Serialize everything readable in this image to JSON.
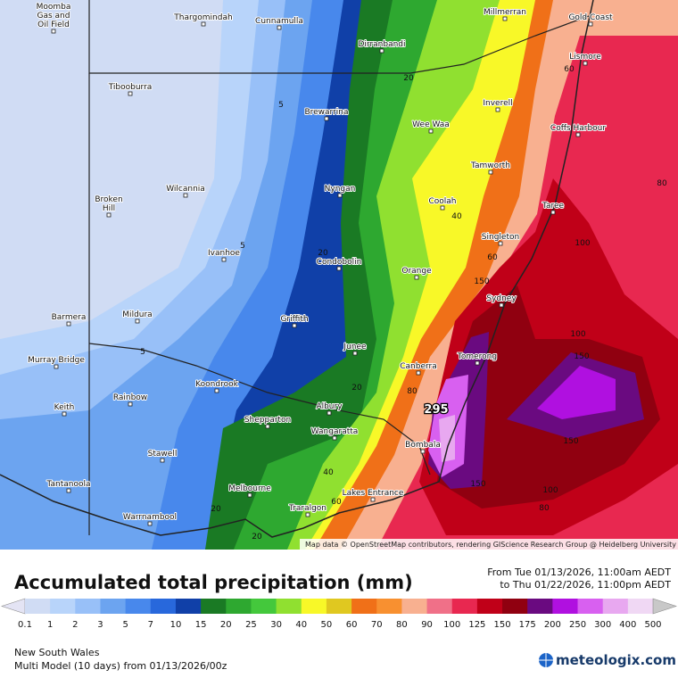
{
  "map": {
    "towns": [
      [
        "Moomba",
        "Gas and",
        "Oil Field"
      ],
      "Thargomindah",
      "Cunnamulla",
      "Millmerran",
      "Gold Coast",
      "Dirranbandi",
      "Lismore",
      "Tibooburra",
      "Brewarrina",
      "Inverell",
      "Wee Waa",
      "Coffs Harbour",
      "Tamworth",
      "Nyngan",
      "Wilcannia",
      [
        "Broken",
        "Hill"
      ],
      "Coolah",
      "Taree",
      "Singleton",
      "Ivanhoe",
      "Condobolin",
      "Orange",
      "Sydney",
      "Barmera",
      "Mildura",
      "Griffith",
      "Junee",
      "Murray Bridge",
      "Canberra",
      "Tomerong",
      "Koondrook",
      "Rainbow",
      "Keith",
      "Albury",
      "Shepparton",
      "Wangaratta",
      "Bombala",
      "Stawell",
      "Tantanoola",
      "Melbourne",
      "Lakes Entrance",
      "Warrnambool",
      "Traralgon"
    ],
    "contour_labels": [
      5,
      5,
      5,
      20,
      20,
      20,
      20,
      20,
      40,
      40,
      60,
      60,
      60,
      80,
      80,
      80,
      100,
      100,
      100,
      150,
      150,
      150,
      150,
      295
    ],
    "attribution": "Map data © OpenStreetMap contributors, rendering GIScience Research Group @ Heidelberg University"
  },
  "header": {
    "title": "Accumulated total precipitation (mm)",
    "period_from": "From Tue 01/13/2026, 11:00am AEDT",
    "period_to": "to Thu 01/22/2026, 11:00pm AEDT"
  },
  "legend": {
    "ticks": [
      0.1,
      1,
      2,
      3,
      5,
      7,
      10,
      15,
      20,
      25,
      30,
      40,
      50,
      60,
      70,
      80,
      90,
      100,
      125,
      150,
      175,
      200,
      250,
      300,
      400,
      500
    ],
    "colors": [
      "#e4e4f4",
      "#d0dcf4",
      "#b8d4fa",
      "#98c0f8",
      "#6ca4f0",
      "#4888ec",
      "#2868dc",
      "#1040a8",
      "#1a7a24",
      "#2ea830",
      "#44c83c",
      "#90e030",
      "#f8f828",
      "#e0c820",
      "#f07018",
      "#f89030",
      "#f8b090",
      "#f07088",
      "#e82850",
      "#c00018",
      "#900010",
      "#6a0a80",
      "#b010e0",
      "#d860f0",
      "#e8a8f0",
      "#f0d8f4",
      "#c8c8c8"
    ]
  },
  "footer": {
    "region": "New South Wales",
    "model": "Multi Model (10 days) from 01/13/2026/00z",
    "brand": "meteologix.com"
  }
}
